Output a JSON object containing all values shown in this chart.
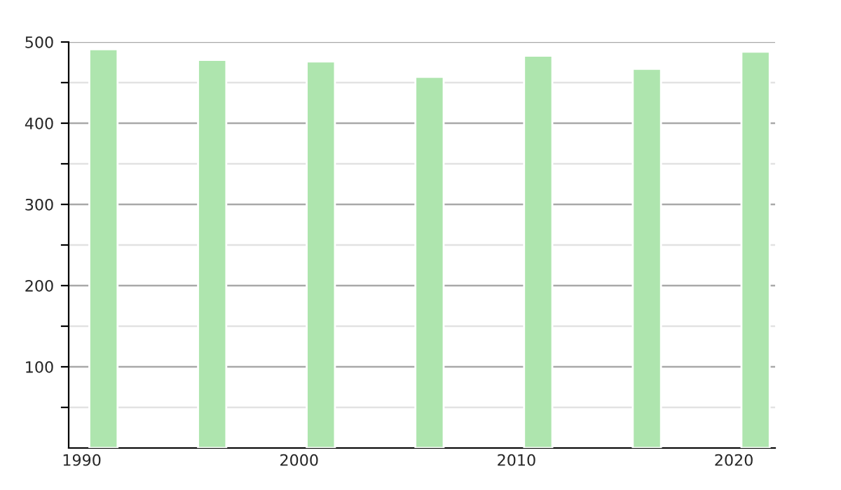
{
  "chart_data": {
    "type": "bar",
    "x": [
      1991,
      1996,
      2001,
      2006,
      2011,
      2016,
      2021
    ],
    "values": [
      491,
      478,
      476,
      457,
      483,
      467,
      488
    ],
    "color": "#aee5ae",
    "xlim": [
      1989.4,
      2021.9
    ],
    "xticks": [
      1990,
      2000,
      2010,
      2020
    ],
    "ylim": [
      0,
      500
    ],
    "yticks": [
      {
        "value": 50,
        "label": null
      },
      100,
      {
        "value": 150,
        "label": null
      },
      200,
      {
        "value": 250,
        "label": null
      },
      300,
      {
        "value": 350,
        "label": null
      },
      400,
      {
        "value": 450,
        "label": null
      },
      500
    ],
    "grid": "y"
  }
}
